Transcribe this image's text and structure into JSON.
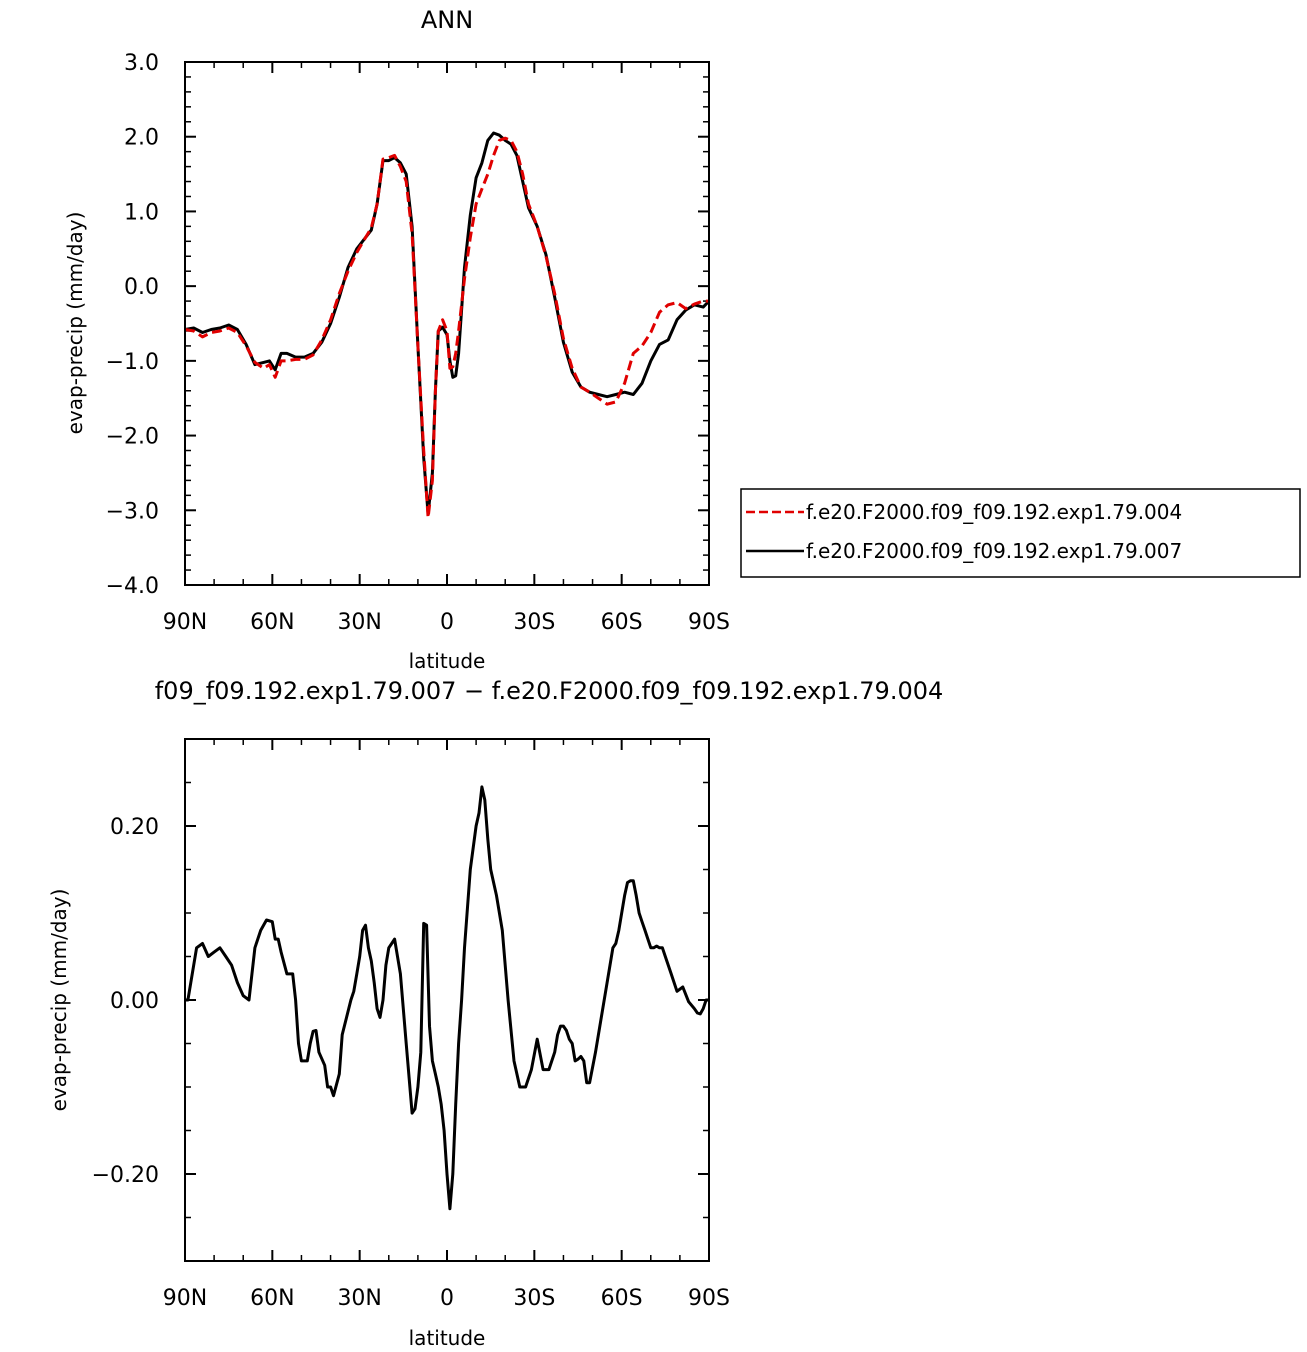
{
  "chart_data": [
    {
      "type": "line",
      "title": "ANN",
      "xlabel": "latitude",
      "ylabel": "evap-precip (mm/day)",
      "xlim": [
        90,
        -90
      ],
      "ylim": [
        -4.0,
        3.0
      ],
      "xticks": [
        90,
        60,
        30,
        0,
        -30,
        -60,
        -90
      ],
      "xtick_labels": [
        "90N",
        "60N",
        "30N",
        "0",
        "30S",
        "60S",
        "90S"
      ],
      "yticks": [
        -4.0,
        -3.0,
        -2.0,
        -1.0,
        0.0,
        1.0,
        2.0,
        3.0
      ],
      "ytick_labels": [
        "−4.0",
        "−3.0",
        "−2.0",
        "−1.0",
        "0.0",
        "1.0",
        "2.0",
        "3.0"
      ],
      "legend_position": "right",
      "series": [
        {
          "name": "f.e20.F2000.f09_f09.192.exp1.79.004",
          "color": "#e00000",
          "dash": "dashed",
          "x": [
            90,
            87,
            84,
            81,
            78,
            75,
            72,
            69,
            66,
            63,
            61,
            59,
            57,
            55,
            52,
            49,
            46,
            43,
            40,
            37,
            34,
            31,
            28,
            26,
            24,
            22,
            20,
            18,
            16,
            14,
            12,
            10,
            8,
            6.5,
            5,
            4,
            3,
            1.5,
            0,
            -1,
            -2,
            -3,
            -4,
            -6,
            -8,
            -10,
            -12,
            -14,
            -16,
            -18,
            -20,
            -22,
            -24,
            -26,
            -28,
            -31,
            -34,
            -37,
            -40,
            -43,
            -46,
            -49,
            -52,
            -55,
            -58,
            -61,
            -64,
            -67,
            -70,
            -73,
            -76,
            -79,
            -82,
            -85,
            -88,
            -90
          ],
          "y": [
            -0.58,
            -0.6,
            -0.68,
            -0.62,
            -0.6,
            -0.56,
            -0.62,
            -0.8,
            -1.02,
            -1.1,
            -1.05,
            -1.22,
            -1.0,
            -1.0,
            -0.98,
            -0.98,
            -0.92,
            -0.72,
            -0.45,
            -0.1,
            0.2,
            0.45,
            0.65,
            0.78,
            1.1,
            1.7,
            1.72,
            1.75,
            1.6,
            1.4,
            0.7,
            -0.8,
            -2.2,
            -3.1,
            -2.6,
            -1.4,
            -0.6,
            -0.45,
            -0.6,
            -1.1,
            -1.08,
            -0.9,
            -0.6,
            0.1,
            0.65,
            1.1,
            1.3,
            1.5,
            1.75,
            1.95,
            1.98,
            1.95,
            1.8,
            1.5,
            1.1,
            0.8,
            0.4,
            -0.1,
            -0.7,
            -1.1,
            -1.35,
            -1.42,
            -1.5,
            -1.58,
            -1.55,
            -1.3,
            -0.9,
            -0.8,
            -0.62,
            -0.35,
            -0.25,
            -0.22,
            -0.3,
            -0.24,
            -0.2,
            -0.2
          ]
        },
        {
          "name": "f.e20.F2000.f09_f09.192.exp1.79.007",
          "color": "#000000",
          "dash": "solid",
          "x": [
            90,
            87,
            84,
            81,
            78,
            75,
            72,
            69,
            66,
            63,
            61,
            59,
            57,
            55,
            52,
            49,
            46,
            43,
            40,
            37,
            34,
            31,
            28,
            26,
            24,
            22,
            20,
            18,
            16,
            14,
            12,
            10,
            8,
            6.5,
            5,
            4,
            3,
            1.5,
            0,
            -1,
            -2,
            -3,
            -4,
            -6,
            -8,
            -10,
            -12,
            -14,
            -16,
            -18,
            -20,
            -22,
            -24,
            -26,
            -28,
            -31,
            -34,
            -37,
            -40,
            -43,
            -46,
            -49,
            -52,
            -55,
            -58,
            -61,
            -64,
            -67,
            -70,
            -73,
            -76,
            -79,
            -82,
            -85,
            -88,
            -90
          ],
          "y": [
            -0.58,
            -0.56,
            -0.62,
            -0.58,
            -0.56,
            -0.52,
            -0.58,
            -0.78,
            -1.05,
            -1.02,
            -1.0,
            -1.12,
            -0.9,
            -0.9,
            -0.95,
            -0.95,
            -0.9,
            -0.75,
            -0.5,
            -0.15,
            0.25,
            0.5,
            0.65,
            0.75,
            1.1,
            1.68,
            1.68,
            1.72,
            1.65,
            1.5,
            0.8,
            -0.8,
            -2.3,
            -3.05,
            -2.5,
            -1.4,
            -0.6,
            -0.55,
            -0.65,
            -1.0,
            -1.22,
            -1.2,
            -0.9,
            0.25,
            0.95,
            1.45,
            1.65,
            1.95,
            2.05,
            2.02,
            1.95,
            1.9,
            1.75,
            1.4,
            1.05,
            0.8,
            0.42,
            -0.15,
            -0.75,
            -1.15,
            -1.35,
            -1.42,
            -1.45,
            -1.48,
            -1.45,
            -1.42,
            -1.45,
            -1.3,
            -1.0,
            -0.78,
            -0.72,
            -0.45,
            -0.32,
            -0.25,
            -0.28,
            -0.2
          ]
        }
      ]
    },
    {
      "type": "line",
      "title": "f09_f09.192.exp1.79.007 − f.e20.F2000.f09_f09.192.exp1.79.004",
      "xlabel": "latitude",
      "ylabel": "evap-precip (mm/day)",
      "xlim": [
        90,
        -90
      ],
      "ylim": [
        -0.3,
        0.3
      ],
      "xticks": [
        90,
        60,
        30,
        0,
        -30,
        -60,
        -90
      ],
      "xtick_labels": [
        "90N",
        "60N",
        "30N",
        "0",
        "30S",
        "60S",
        "90S"
      ],
      "yticks": [
        -0.2,
        0.0,
        0.2
      ],
      "ytick_labels": [
        "−0.20",
        "0.00",
        "0.20"
      ],
      "series": [
        {
          "color": "#000000",
          "x": [
            90,
            89,
            88,
            86,
            84,
            82,
            80,
            78,
            76,
            74,
            72,
            70,
            68,
            66,
            64,
            62,
            60,
            59,
            58,
            57,
            55,
            53,
            52,
            51,
            50,
            48,
            47,
            46,
            45,
            44,
            42,
            41,
            40,
            39,
            37,
            36,
            33,
            32,
            31,
            30,
            29,
            28,
            27,
            26,
            25,
            24,
            23,
            22,
            21,
            20,
            19,
            18,
            17,
            16,
            14,
            12,
            11,
            10,
            9,
            8,
            7,
            6,
            5,
            4,
            3,
            2,
            1,
            0,
            -1,
            -2,
            -3,
            -4,
            -5,
            -6,
            -8,
            -10,
            -11,
            -12,
            -13,
            -14,
            -15,
            -17,
            -19,
            -21,
            -23,
            -25,
            -27,
            -29,
            -31,
            -33,
            -35,
            -36,
            -37,
            -38,
            -39,
            -40,
            -41,
            -42,
            -43,
            -44,
            -45,
            -46,
            -47,
            -48,
            -49,
            -51,
            -53,
            -55,
            -57,
            -58,
            -59,
            -60,
            -61,
            -62,
            -63,
            -64,
            -65,
            -66,
            -67,
            -68,
            -69,
            -70,
            -71,
            -72,
            -73,
            -74,
            -75,
            -77,
            -79,
            -81,
            -83,
            -85,
            -86,
            -87,
            -88,
            -89,
            -90
          ],
          "y": [
            0.0,
            0.0,
            0.02,
            0.06,
            0.065,
            0.05,
            0.055,
            0.06,
            0.05,
            0.04,
            0.02,
            0.005,
            0.0,
            0.06,
            0.08,
            0.092,
            0.09,
            0.07,
            0.07,
            0.055,
            0.03,
            0.03,
            0.0,
            -0.05,
            -0.07,
            -0.07,
            -0.05,
            -0.036,
            -0.035,
            -0.06,
            -0.075,
            -0.1,
            -0.1,
            -0.11,
            -0.085,
            -0.04,
            0.0,
            0.01,
            0.03,
            0.05,
            0.08,
            0.086,
            0.06,
            0.045,
            0.02,
            -0.01,
            -0.02,
            0.0,
            0.04,
            0.06,
            0.065,
            0.07,
            0.05,
            0.03,
            -0.05,
            -0.13,
            -0.125,
            -0.1,
            -0.06,
            0.088,
            0.086,
            -0.03,
            -0.07,
            -0.085,
            -0.1,
            -0.12,
            -0.15,
            -0.2,
            -0.24,
            -0.2,
            -0.12,
            -0.05,
            0.0,
            0.06,
            0.15,
            0.2,
            0.215,
            0.245,
            0.23,
            0.185,
            0.15,
            0.12,
            0.08,
            0.0,
            -0.07,
            -0.1,
            -0.1,
            -0.08,
            -0.045,
            -0.08,
            -0.08,
            -0.07,
            -0.06,
            -0.04,
            -0.03,
            -0.03,
            -0.035,
            -0.045,
            -0.05,
            -0.07,
            -0.068,
            -0.065,
            -0.07,
            -0.095,
            -0.095,
            -0.06,
            -0.02,
            0.02,
            0.06,
            0.065,
            0.08,
            0.1,
            0.12,
            0.135,
            0.137,
            0.137,
            0.12,
            0.1,
            0.09,
            0.08,
            0.07,
            0.06,
            0.06,
            0.062,
            0.06,
            0.06,
            0.05,
            0.03,
            0.01,
            0.015,
            -0.002,
            -0.01,
            -0.015,
            -0.016,
            -0.01,
            0.0,
            0.0
          ]
        }
      ]
    }
  ]
}
